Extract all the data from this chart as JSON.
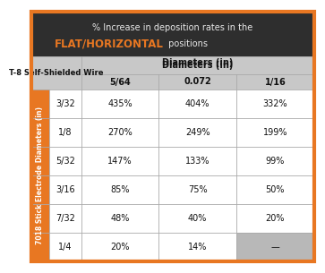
{
  "title_line1": "% Increase in deposition rates in the",
  "title_line2_bold": "FLAT/HORIZONTAL",
  "title_line2_rest": " positions",
  "title_bg": "#2e2e2e",
  "title_text_color": "#e8e8e8",
  "title_orange": "#e87722",
  "header_bg": "#c8c8c8",
  "header_text": "Diameters (in)",
  "col_headers": [
    "5/64",
    "0.072",
    "1/16"
  ],
  "row_labels": [
    "3/32",
    "1/8",
    "5/32",
    "3/16",
    "7/32",
    "1/4"
  ],
  "side_label": "7018 Stick Electrode Diameters (in)",
  "top_left_label": "T-8 Self-Shielded Wire",
  "data": [
    [
      "435%",
      "404%",
      "332%"
    ],
    [
      "270%",
      "249%",
      "199%"
    ],
    [
      "147%",
      "133%",
      "99%"
    ],
    [
      "85%",
      "75%",
      "50%"
    ],
    [
      "48%",
      "40%",
      "20%"
    ],
    [
      "20%",
      "14%",
      "—"
    ]
  ],
  "last_cell_bg": "#b8b8b8",
  "orange_border": "#e87722",
  "orange_side_bg": "#e87722",
  "white_bg": "#ffffff",
  "light_gray_header": "#c8c8c8",
  "line_color": "#aaaaaa",
  "data_font_size": 7.0,
  "header_font_size": 7.0,
  "side_font_size": 5.5,
  "title_font_size1": 7.0,
  "title_font_size2": 8.5
}
